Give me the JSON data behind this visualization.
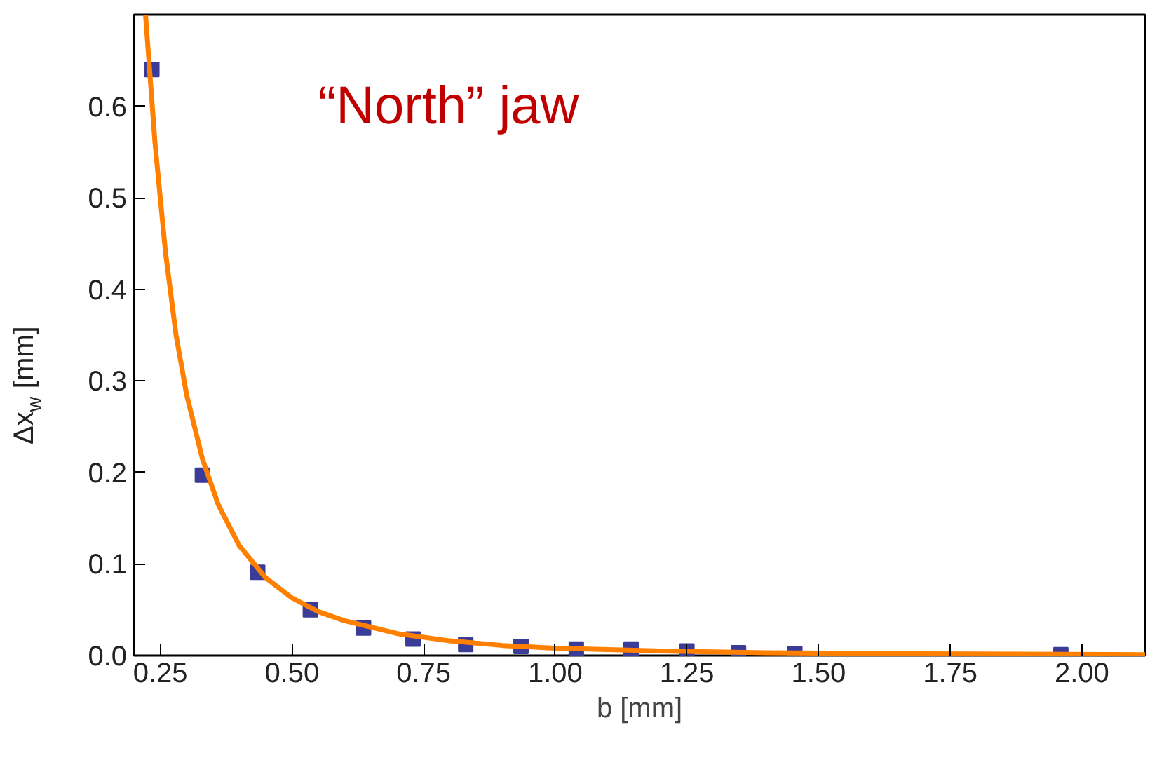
{
  "chart_data": {
    "type": "scatter",
    "xlabel": "b [mm]",
    "ylabel": "Δx$_{w}$ [mm]",
    "annotations": [
      "“North” jaw"
    ],
    "xlim": [
      0.2,
      2.12
    ],
    "ylim": [
      0,
      0.7
    ],
    "xticks": [
      0.25,
      {
        "value": 0.5,
        "label": "0.50"
      },
      0.75,
      {
        "value": 1.0,
        "label": "1.00"
      },
      1.25,
      {
        "value": 1.5,
        "label": "1.50"
      },
      1.75,
      {
        "value": 2.0,
        "label": "2.00"
      }
    ],
    "yticks": [
      {
        "value": 0,
        "label": "0.0"
      },
      0.1,
      0.2,
      0.3,
      0.4,
      0.5,
      0.6
    ],
    "grid": false,
    "series": [
      {
        "type": "scatter",
        "marker": "square",
        "color": "#3b3b98",
        "x": [
          0.234,
          0.33,
          0.435,
          0.535,
          0.636,
          0.73,
          0.83,
          0.935,
          1.04,
          1.144,
          1.25,
          1.348,
          1.455,
          1.96
        ],
        "values": [
          0.64,
          0.197,
          0.091,
          0.05,
          0.03,
          0.018,
          0.012,
          0.01,
          0.007,
          0.007,
          0.005,
          0.003,
          0.002,
          0.001
        ]
      },
      {
        "type": "line",
        "color": "#ff8000",
        "x": [
          0.222,
          0.24,
          0.26,
          0.28,
          0.3,
          0.33,
          0.36,
          0.4,
          0.45,
          0.5,
          0.55,
          0.6,
          0.7,
          0.8,
          0.9,
          1.0,
          1.2,
          1.4,
          1.7,
          2.12
        ],
        "values": [
          0.7,
          0.56,
          0.44,
          0.35,
          0.285,
          0.215,
          0.165,
          0.12,
          0.085,
          0.063,
          0.048,
          0.038,
          0.024,
          0.016,
          0.011,
          0.008,
          0.005,
          0.003,
          0.002,
          0.001
        ]
      }
    ]
  }
}
